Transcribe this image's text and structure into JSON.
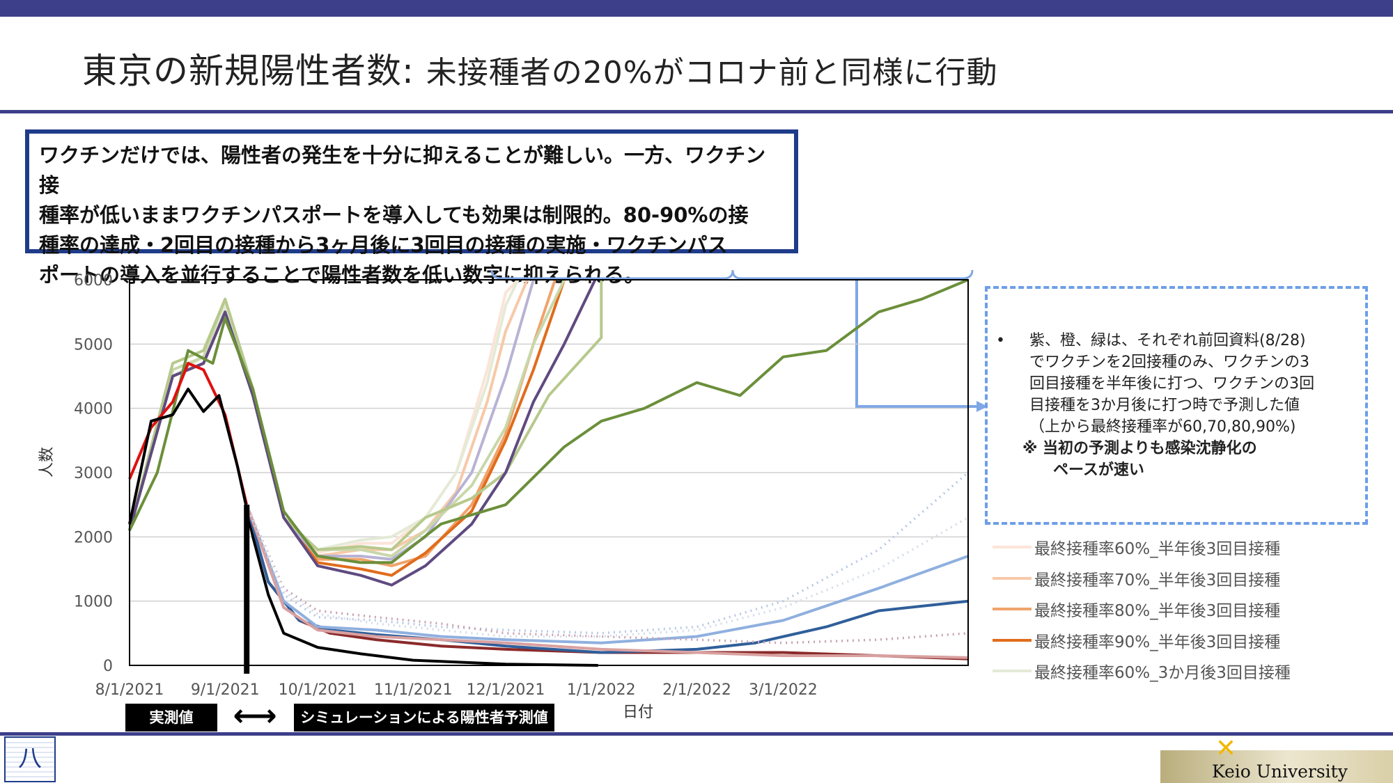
{
  "header": {
    "title": "東京の新規陽性者数:",
    "subtitle": "未接種者の20%がコロナ前と同様に行動"
  },
  "callout": {
    "lines": [
      "ワクチンだけでは、陽性者の発生を十分に抑えることが難しい。一方、ワクチン接",
      "種率が低いままワクチンパスポートを導入しても効果は制限的。80-90%の接",
      "種率の達成・2回目の接種から3ヶ月後に3回目の接種の実施・ワクチンパス",
      "ポートの導入を並行することで陽性者数を低い数字に抑えられる。"
    ]
  },
  "note": {
    "bullet": "•",
    "lines": [
      "紫、橙、緑は、それぞれ前回資料(8/28)",
      "でワクチンを2回接種のみ、ワクチンの3",
      "回目接種を半年後に打つ、ワクチンの3回",
      "目接種を3か月後に打つ時で予測した値",
      "（上から最終接種率が60,70,80,90%)"
    ],
    "emphasis_1": "※ 当初の予測よりも感染沈静化の",
    "emphasis_2": "ペースが速い"
  },
  "legend": [
    {
      "label": "最終接種率60%_半年後3回目接種",
      "color": "#fbe4d8"
    },
    {
      "label": "最終接種率70%_半年後3回目接種",
      "color": "#f7c9a8"
    },
    {
      "label": "最終接種率80%_半年後3回目接種",
      "color": "#f0a36b"
    },
    {
      "label": "最終接種率90%_半年後3回目接種",
      "color": "#e06c1c"
    },
    {
      "label": "最終接種率60%_3か月後3回目接種",
      "color": "#e4ead6"
    }
  ],
  "tags": {
    "observed": "実測値",
    "simulation": "シミュレーションによる陽性者予測値",
    "arrow": "⟷"
  },
  "logos": {
    "left_glyph": "八",
    "right_text": "Keio University"
  },
  "chart_data": {
    "type": "line",
    "xlabel": "日付",
    "ylabel": "人数",
    "ylim": [
      0,
      6000
    ],
    "yticks": [
      0,
      1000,
      2000,
      3000,
      4000,
      5000,
      6000
    ],
    "xlim": [
      "2021-08-01",
      "2022-04-30"
    ],
    "xticks": [
      "8/1/2021",
      "9/1/2021",
      "10/1/2021",
      "11/1/2021",
      "12/1/2021",
      "1/1/2022",
      "2/1/2022",
      "3/1/2022"
    ],
    "xtick_dates": [
      "2021-08-01",
      "2021-09-01",
      "2021-10-01",
      "2021-11-01",
      "2021-12-01",
      "2022-01-01",
      "2022-02-01",
      "2022-03-01"
    ],
    "grid": "horizontal",
    "simulation_start": "2021-09-08",
    "series": [
      {
        "name": "最終接種率60%_半年後3回目接種",
        "color": "#fbe4d8",
        "x": [
          "2021-08-01",
          "2021-08-15",
          "2021-08-25",
          "2021-09-01",
          "2021-09-10",
          "2021-09-20",
          "2021-10-01",
          "2021-10-15",
          "2021-10-25",
          "2021-11-05",
          "2021-11-15",
          "2021-11-25",
          "2021-12-01",
          "2021-12-05"
        ],
        "y": [
          2100,
          4500,
          4700,
          5500,
          4200,
          2300,
          1750,
          1900,
          1900,
          2300,
          3000,
          4600,
          5800,
          6000
        ]
      },
      {
        "name": "最終接種率70%_半年後3回目接種",
        "color": "#f7c9a8",
        "x": [
          "2021-08-01",
          "2021-08-15",
          "2021-08-25",
          "2021-09-01",
          "2021-09-10",
          "2021-09-20",
          "2021-10-01",
          "2021-10-15",
          "2021-10-25",
          "2021-11-05",
          "2021-11-15",
          "2021-11-25",
          "2021-12-01",
          "2021-12-08"
        ],
        "y": [
          2100,
          4500,
          4700,
          5500,
          4200,
          2300,
          1700,
          1800,
          1800,
          2100,
          2700,
          4100,
          5200,
          6000
        ]
      },
      {
        "name": "最終接種率80%_半年後3回目接種",
        "color": "#f0a36b",
        "x": [
          "2021-08-01",
          "2021-08-15",
          "2021-08-25",
          "2021-09-01",
          "2021-09-10",
          "2021-09-20",
          "2021-10-01",
          "2021-10-15",
          "2021-10-25",
          "2021-11-05",
          "2021-11-20",
          "2021-12-01",
          "2021-12-10",
          "2021-12-17"
        ],
        "y": [
          2100,
          4500,
          4700,
          5500,
          4200,
          2300,
          1650,
          1650,
          1550,
          1700,
          2500,
          3600,
          5000,
          6000
        ]
      },
      {
        "name": "最終接種率90%_半年後3回目接種",
        "color": "#e06c1c",
        "x": [
          "2021-08-01",
          "2021-08-15",
          "2021-08-25",
          "2021-09-01",
          "2021-09-10",
          "2021-09-20",
          "2021-10-01",
          "2021-10-15",
          "2021-10-25",
          "2021-11-05",
          "2021-11-20",
          "2021-12-01",
          "2021-12-10",
          "2021-12-20"
        ],
        "y": [
          2100,
          4500,
          4700,
          5500,
          4200,
          2300,
          1600,
          1500,
          1400,
          1750,
          2400,
          3500,
          4600,
          6000
        ]
      },
      {
        "name": "最終接種率60%_3か月後3回目接種",
        "color": "#e4ead6",
        "x": [
          "2021-08-01",
          "2021-08-15",
          "2021-08-25",
          "2021-09-01",
          "2021-09-10",
          "2021-09-20",
          "2021-10-01",
          "2021-10-15",
          "2021-10-25",
          "2021-11-05",
          "2021-11-15",
          "2021-11-25",
          "2021-12-01",
          "2021-12-05"
        ],
        "y": [
          2100,
          4500,
          4800,
          5600,
          4300,
          2300,
          1800,
          1950,
          2000,
          2300,
          3000,
          4400,
          5600,
          6000
        ]
      },
      {
        "color": "#b8b3d4",
        "x": [
          "2021-08-01",
          "2021-08-15",
          "2021-08-25",
          "2021-09-01",
          "2021-09-10",
          "2021-09-20",
          "2021-10-01",
          "2021-10-15",
          "2021-10-25",
          "2021-11-05",
          "2021-11-20",
          "2021-12-01",
          "2021-12-10"
        ],
        "y": [
          2100,
          4500,
          4700,
          5500,
          4200,
          2300,
          1700,
          1700,
          1650,
          2000,
          3000,
          4500,
          6000
        ]
      },
      {
        "color": "#c9d7a9",
        "x": [
          "2021-08-01",
          "2021-08-15",
          "2021-08-25",
          "2021-09-01",
          "2021-09-10",
          "2021-09-20",
          "2021-10-01",
          "2021-10-15",
          "2021-10-25",
          "2021-11-05",
          "2021-11-20",
          "2021-12-01",
          "2021-12-10",
          "2021-12-20"
        ],
        "y": [
          2100,
          4600,
          4800,
          5700,
          4300,
          2300,
          1800,
          1800,
          1700,
          2100,
          2800,
          3700,
          5000,
          6000
        ]
      },
      {
        "color": "#b7c98c",
        "x": [
          "2021-08-01",
          "2021-08-15",
          "2021-08-25",
          "2021-09-01",
          "2021-09-10",
          "2021-09-20",
          "2021-10-01",
          "2021-10-15",
          "2021-10-25",
          "2021-11-05",
          "2021-11-20",
          "2021-12-01",
          "2021-12-15",
          "2022-01-01",
          "2022-01-01"
        ],
        "y": [
          2100,
          4700,
          4900,
          5700,
          4300,
          2300,
          1800,
          1850,
          1800,
          2300,
          2600,
          3000,
          4200,
          5100,
          6000
        ]
      },
      {
        "color": "#5f4a80",
        "x": [
          "2021-08-01",
          "2021-08-15",
          "2021-08-25",
          "2021-09-01",
          "2021-09-10",
          "2021-09-20",
          "2021-10-01",
          "2021-10-15",
          "2021-10-25",
          "2021-11-05",
          "2021-11-20",
          "2021-12-01",
          "2021-12-10",
          "2021-12-20",
          "2021-12-30"
        ],
        "y": [
          2100,
          4500,
          4700,
          5500,
          4200,
          2300,
          1550,
          1400,
          1250,
          1550,
          2200,
          3000,
          4100,
          5000,
          6000
        ]
      },
      {
        "color": "#6b8f3a",
        "x": [
          "2021-08-01",
          "2021-08-10",
          "2021-08-20",
          "2021-08-28",
          "2021-09-01",
          "2021-09-10",
          "2021-09-20",
          "2021-10-01",
          "2021-10-15",
          "2021-10-25",
          "2021-11-10",
          "2021-12-01",
          "2021-12-20",
          "2022-01-01",
          "2022-01-15",
          "2022-02-01",
          "2022-02-15",
          "2022-03-01",
          "2022-03-15",
          "2022-04-01",
          "2022-04-15",
          "2022-04-30"
        ],
        "y": [
          2100,
          3000,
          4900,
          4700,
          5400,
          4300,
          2400,
          1700,
          1600,
          1600,
          2200,
          2500,
          3400,
          3800,
          4000,
          4400,
          4200,
          4800,
          4900,
          5500,
          5700,
          6000
        ]
      },
      {
        "name": "actual",
        "color": "#e01010",
        "x": [
          "2021-08-01",
          "2021-08-08",
          "2021-08-15",
          "2021-08-20",
          "2021-08-25",
          "2021-09-01",
          "2021-09-08"
        ],
        "y": [
          2900,
          3700,
          4100,
          4700,
          4600,
          3900,
          2500
        ]
      },
      {
        "color": "#000000",
        "x": [
          "2021-08-01",
          "2021-08-08",
          "2021-08-15",
          "2021-08-20",
          "2021-08-25",
          "2021-08-30",
          "2021-09-05",
          "2021-09-10",
          "2021-09-15",
          "2021-09-20",
          "2021-10-01",
          "2021-10-15",
          "2021-11-01",
          "2021-12-01",
          "2021-12-31"
        ],
        "y": [
          2200,
          3800,
          3900,
          4300,
          3950,
          4200,
          3100,
          2000,
          1100,
          500,
          280,
          180,
          80,
          20,
          0
        ]
      },
      {
        "color": "#8b2a2a",
        "x": [
          "2021-09-08",
          "2021-09-15",
          "2021-09-25",
          "2021-10-05",
          "2021-10-20",
          "2021-11-10",
          "2021-12-01",
          "2022-01-01",
          "2022-02-01",
          "2022-03-01",
          "2022-04-01",
          "2022-04-30"
        ],
        "y": [
          2500,
          1300,
          700,
          500,
          400,
          300,
          250,
          200,
          200,
          200,
          150,
          100
        ]
      },
      {
        "color": "#2f5f9a",
        "x": [
          "2021-09-08",
          "2021-09-15",
          "2021-09-25",
          "2021-10-05",
          "2021-10-20",
          "2021-11-10",
          "2021-12-01",
          "2022-01-01",
          "2022-02-01",
          "2022-02-20",
          "2022-03-15",
          "2022-04-01",
          "2022-04-30"
        ],
        "y": [
          2500,
          1300,
          700,
          550,
          480,
          400,
          300,
          200,
          250,
          350,
          600,
          850,
          1000
        ]
      },
      {
        "color": "#8fb0df",
        "x": [
          "2021-09-08",
          "2021-09-20",
          "2021-10-01",
          "2021-10-20",
          "2021-11-10",
          "2021-12-01",
          "2022-01-01",
          "2022-02-01",
          "2022-03-01",
          "2022-04-01",
          "2022-04-30"
        ],
        "y": [
          2500,
          1000,
          600,
          550,
          450,
          400,
          350,
          450,
          700,
          1200,
          1700
        ]
      },
      {
        "color": "#d9a0a0",
        "x": [
          "2021-09-08",
          "2021-09-20",
          "2021-10-01",
          "2021-10-20",
          "2021-11-10",
          "2021-12-01",
          "2022-01-01",
          "2022-02-01",
          "2022-03-01",
          "2022-04-01",
          "2022-04-30"
        ],
        "y": [
          2500,
          900,
          550,
          450,
          400,
          350,
          250,
          200,
          150,
          150,
          120
        ]
      },
      {
        "color": "#b9c9e6",
        "dotted": true,
        "x": [
          "2021-09-08",
          "2021-09-20",
          "2021-10-01",
          "2021-10-20",
          "2021-11-10",
          "2021-12-01",
          "2022-01-01",
          "2022-02-01",
          "2022-03-01",
          "2022-04-01",
          "2022-04-30"
        ],
        "y": [
          2500,
          1100,
          750,
          700,
          600,
          550,
          500,
          600,
          1000,
          1800,
          3000
        ]
      },
      {
        "color": "#c8a3b3",
        "dotted": true,
        "x": [
          "2021-09-08",
          "2021-09-20",
          "2021-10-01",
          "2021-10-20",
          "2021-11-10",
          "2021-12-01",
          "2022-01-01",
          "2022-02-01",
          "2022-03-01",
          "2022-04-01",
          "2022-04-30"
        ],
        "y": [
          2500,
          1200,
          850,
          750,
          650,
          500,
          450,
          400,
          350,
          400,
          500
        ]
      },
      {
        "color": "#d6dde9",
        "dotted": true,
        "x": [
          "2021-09-08",
          "2021-09-20",
          "2021-10-01",
          "2021-10-20",
          "2021-11-10",
          "2021-12-01",
          "2022-01-01",
          "2022-02-01",
          "2022-03-01",
          "2022-04-01",
          "2022-04-30"
        ],
        "y": [
          2500,
          1150,
          800,
          650,
          550,
          450,
          450,
          550,
          900,
          1500,
          2300
        ]
      }
    ]
  }
}
